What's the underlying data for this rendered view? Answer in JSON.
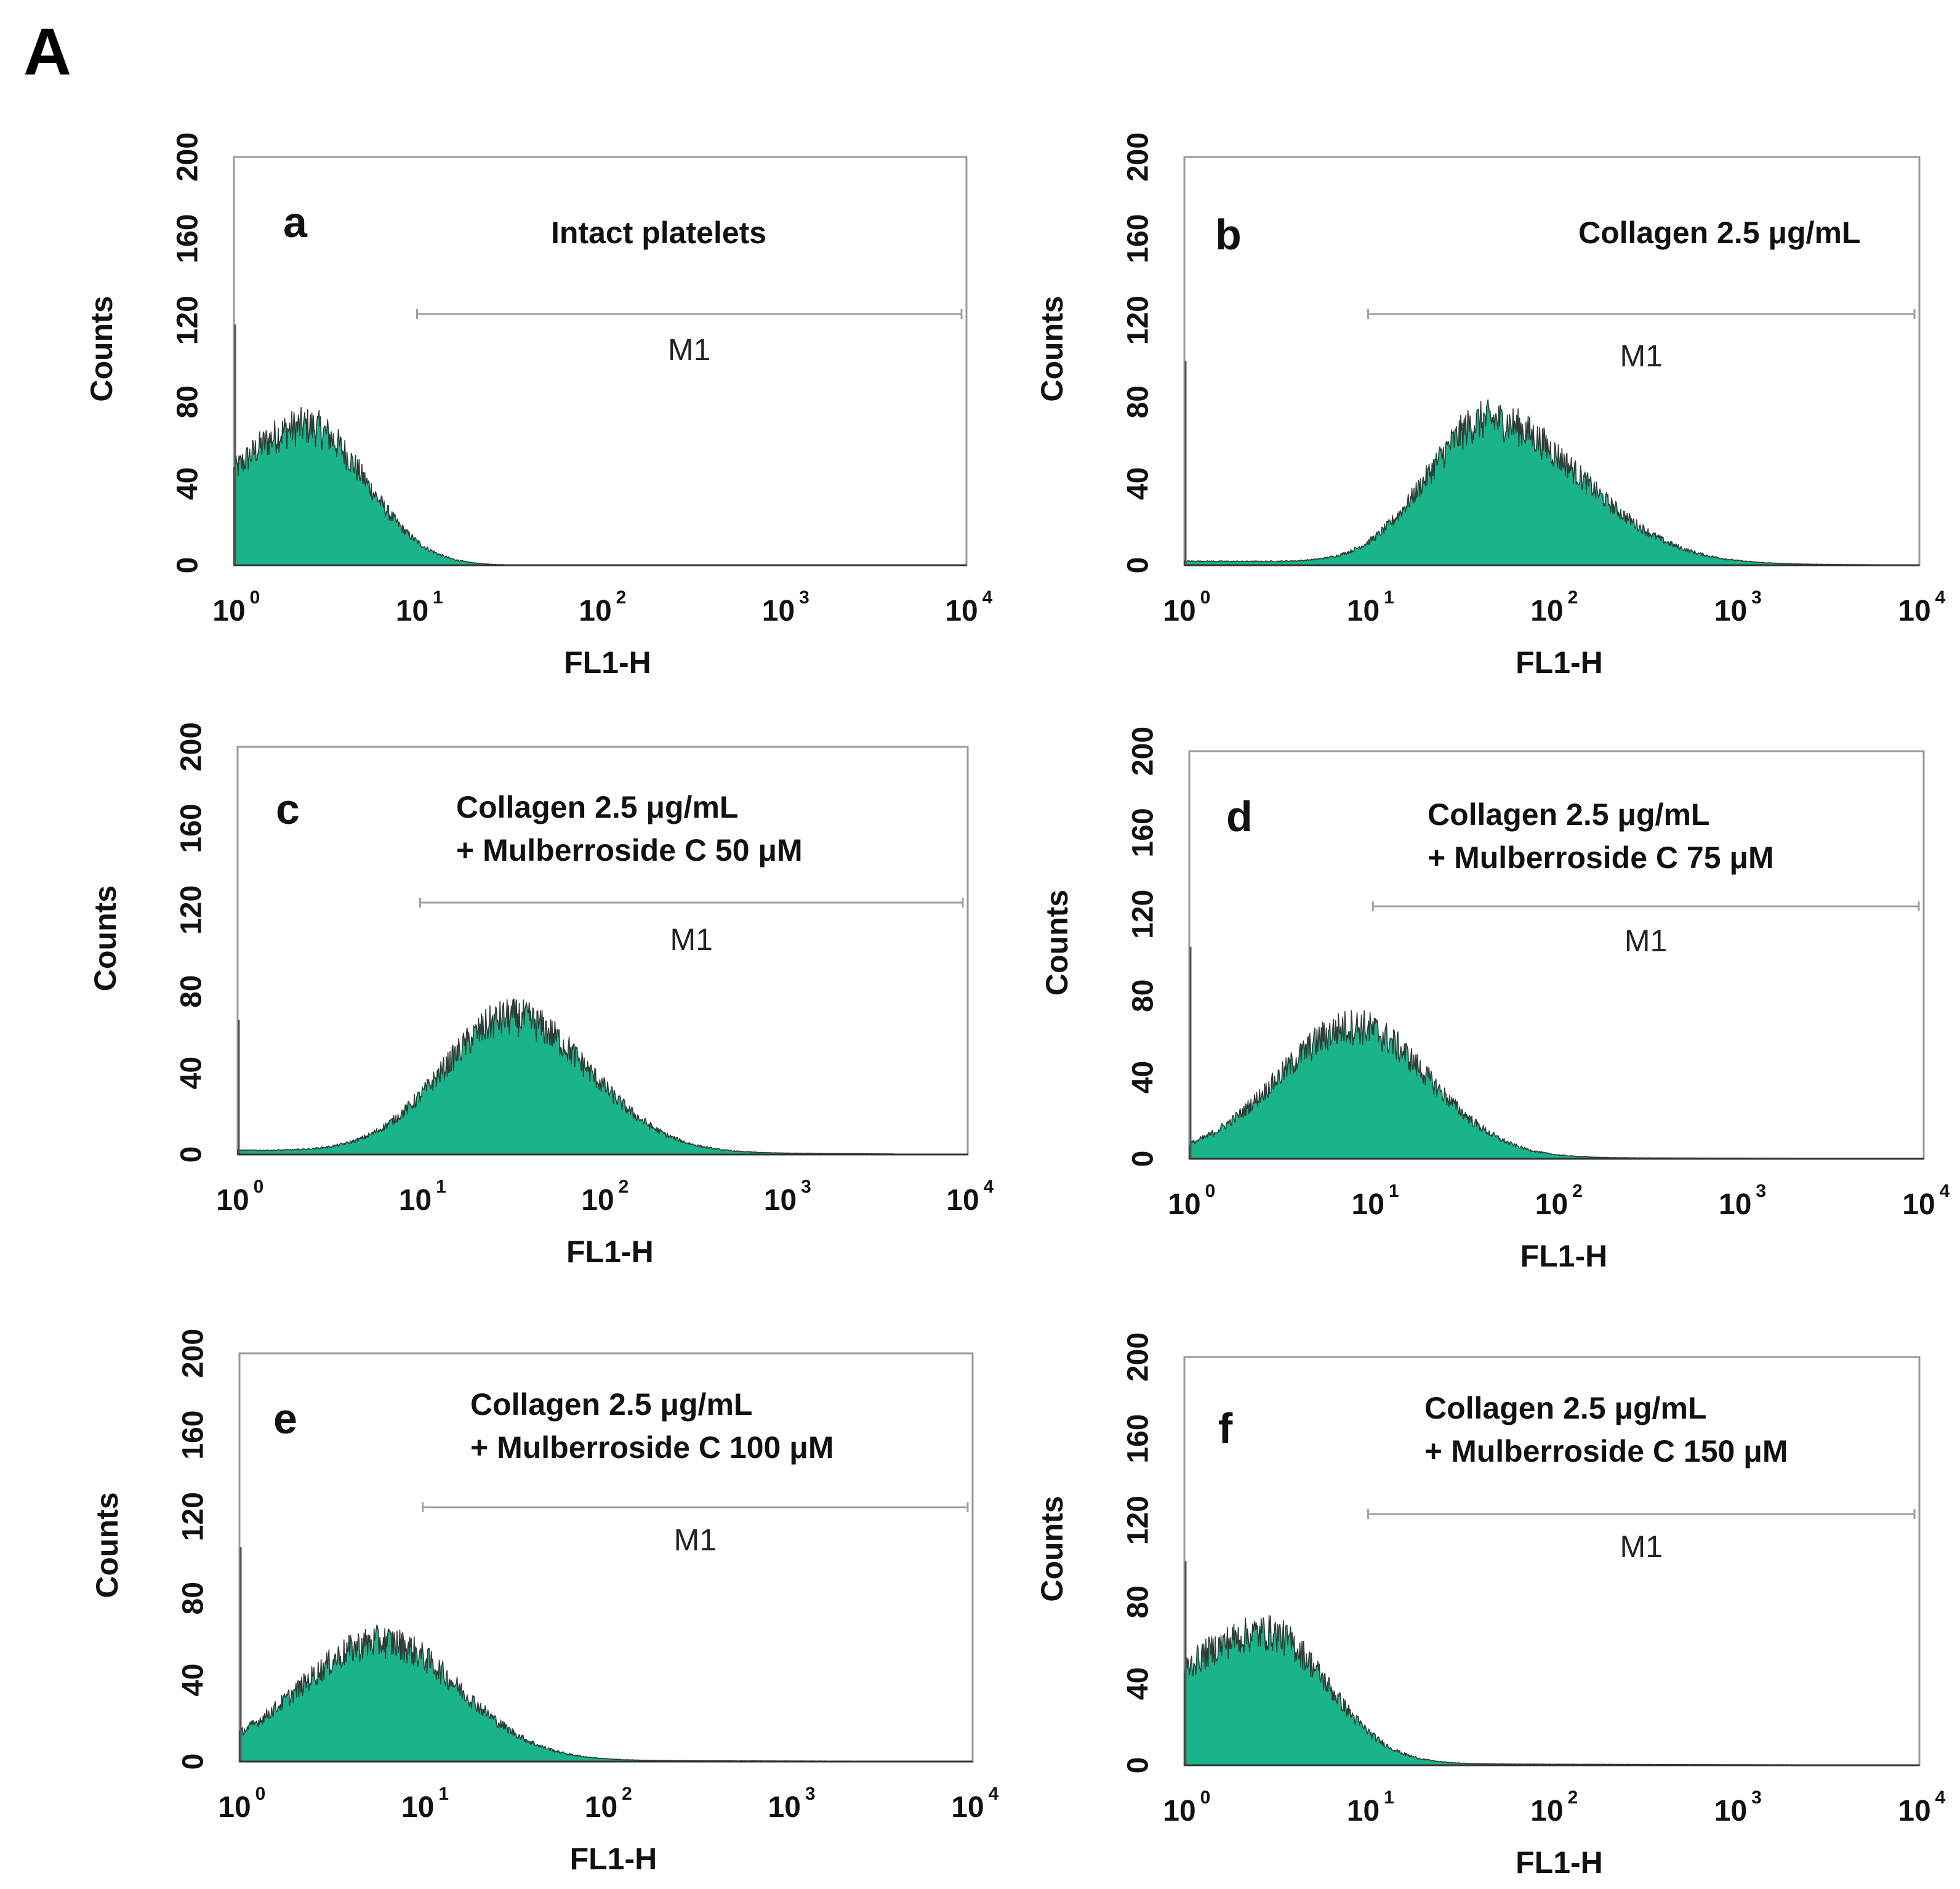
{
  "figure_label": "A",
  "colors": {
    "fill": "#19b48a",
    "outline": "#2f3b36",
    "frame": "#9a9a9a",
    "marker": "#a0a0a0"
  },
  "chart_data": [
    {
      "type": "area",
      "panel": "a",
      "condition_lines": [
        "Intact platelets"
      ],
      "xlabel": "FL1-H",
      "ylabel": "Counts",
      "xscale": "log",
      "xlim": [
        1,
        10000
      ],
      "ylim": [
        0,
        200
      ],
      "yticks": [
        "0",
        "40",
        "80",
        "120",
        "160",
        "200"
      ],
      "xtick_base": "10",
      "xtick_exponents": [
        "0",
        "1",
        "2",
        "3",
        "4"
      ],
      "marker": {
        "label": "M1",
        "x_start": 10,
        "x_end": 10000
      },
      "spike": {
        "x": 1,
        "counts": 118
      },
      "peaks": [
        {
          "mode": 2.5,
          "counts": 68,
          "sigma_left": 0.45,
          "sigma_right": 0.32
        }
      ],
      "baseline": 0,
      "tail_end_decade": 4
    },
    {
      "type": "area",
      "panel": "b",
      "condition_lines": [
        "Collagen 2.5 μg/mL"
      ],
      "xlabel": "FL1-H",
      "ylabel": "Counts",
      "xscale": "log",
      "xlim": [
        1,
        10000
      ],
      "ylim": [
        0,
        200
      ],
      "yticks": [
        "0",
        "40",
        "80",
        "120",
        "160",
        "200"
      ],
      "xtick_base": "10",
      "xtick_exponents": [
        "0",
        "1",
        "2",
        "3",
        "4"
      ],
      "marker": {
        "label": "M1",
        "x_start": 10,
        "x_end": 10000
      },
      "spike": {
        "x": 1,
        "counts": 100
      },
      "peaks": [
        {
          "mode": 45,
          "counts": 70,
          "sigma_left": 0.33,
          "sigma_right": 0.5
        }
      ],
      "baseline": 2,
      "tail_end_decade": 3.95
    },
    {
      "type": "area",
      "panel": "c",
      "condition_lines": [
        "Collagen 2.5 μg/mL",
        "+ Mulberroside C 50 μM"
      ],
      "xlabel": "FL1-H",
      "ylabel": "Counts",
      "xscale": "log",
      "xlim": [
        1,
        10000
      ],
      "ylim": [
        0,
        200
      ],
      "yticks": [
        "0",
        "40",
        "80",
        "120",
        "160",
        "200"
      ],
      "xtick_base": "10",
      "xtick_exponents": [
        "0",
        "1",
        "2",
        "3",
        "4"
      ],
      "marker": {
        "label": "M1",
        "x_start": 10,
        "x_end": 10000
      },
      "spike": {
        "x": 1,
        "counts": 66
      },
      "peaks": [
        {
          "mode": 32,
          "counts": 66,
          "sigma_left": 0.38,
          "sigma_right": 0.42
        }
      ],
      "baseline": 2,
      "tail_end_decade": 3.6
    },
    {
      "type": "area",
      "panel": "d",
      "condition_lines": [
        "Collagen 2.5 μg/mL",
        "+ Mulberroside C 75 μM"
      ],
      "xlabel": "FL1-H",
      "ylabel": "Counts",
      "xscale": "log",
      "xlim": [
        1,
        10000
      ],
      "ylim": [
        0,
        200
      ],
      "yticks": [
        "0",
        "40",
        "80",
        "120",
        "160",
        "200"
      ],
      "xtick_base": "10",
      "xtick_exponents": [
        "0",
        "1",
        "2",
        "3",
        "4"
      ],
      "marker": {
        "label": "M1",
        "x_start": 10,
        "x_end": 10000
      },
      "spike": {
        "x": 1,
        "counts": 104
      },
      "peaks": [
        {
          "mode": 8,
          "counts": 64,
          "sigma_left": 0.42,
          "sigma_right": 0.4
        }
      ],
      "baseline": 1,
      "tail_end_decade": 4
    },
    {
      "type": "area",
      "panel": "e",
      "condition_lines": [
        "Collagen 2.5 μg/mL",
        "+ Mulberroside C 100 μM"
      ],
      "xlabel": "FL1-H",
      "ylabel": "Counts",
      "xscale": "log",
      "xlim": [
        1,
        10000
      ],
      "ylim": [
        0,
        200
      ],
      "yticks": [
        "0",
        "40",
        "80",
        "120",
        "160",
        "200"
      ],
      "xtick_base": "10",
      "xtick_exponents": [
        "0",
        "1",
        "2",
        "3",
        "4"
      ],
      "marker": {
        "label": "M1",
        "x_start": 10,
        "x_end": 10000
      },
      "spike": {
        "x": 1,
        "counts": 105
      },
      "peaks": [
        {
          "mode": 6,
          "counts": 58,
          "sigma_left": 0.45,
          "sigma_right": 0.42
        }
      ],
      "baseline": 1,
      "tail_end_decade": 4
    },
    {
      "type": "area",
      "panel": "f",
      "condition_lines": [
        "Collagen 2.5 μg/mL",
        "+ Mulberroside C 150 μM"
      ],
      "xlabel": "FL1-H",
      "ylabel": "Counts",
      "xscale": "log",
      "xlim": [
        1,
        10000
      ],
      "ylim": [
        0,
        200
      ],
      "yticks": [
        "0",
        "40",
        "80",
        "120",
        "160",
        "200"
      ],
      "xtick_base": "10",
      "xtick_exponents": [
        "0",
        "1",
        "2",
        "3",
        "4"
      ],
      "marker": {
        "label": "M1",
        "x_start": 10,
        "x_end": 10000
      },
      "spike": {
        "x": 1,
        "counts": 100
      },
      "peaks": [
        {
          "mode": 2.8,
          "counts": 64,
          "sigma_left": 0.55,
          "sigma_right": 0.33
        }
      ],
      "baseline": 1,
      "tail_end_decade": 4
    }
  ]
}
